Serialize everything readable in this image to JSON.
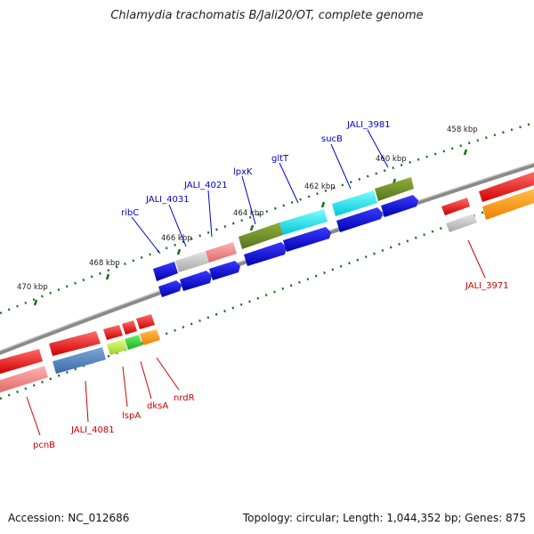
{
  "title": "Chlamydia trachomatis B/Jali20/OT, complete genome",
  "footer": {
    "accession": "Accession: NC_012686",
    "summary": "Topology: circular; Length: 1,044,352 bp; Genes: 875"
  },
  "scale": {
    "ticks": [
      {
        "label": "458 kbp",
        "kb": 458
      },
      {
        "label": "460 kbp",
        "kb": 460
      },
      {
        "label": "462 kbp",
        "kb": 462
      },
      {
        "label": "464 kbp",
        "kb": 464
      },
      {
        "label": "466 kbp",
        "kb": 466
      },
      {
        "label": "468 kbp",
        "kb": 468
      },
      {
        "label": "470 kbp",
        "kb": 470
      }
    ]
  },
  "genes": {
    "top_labels": [
      "ribC",
      "JALI_4031",
      "JALI_4021",
      "lpxK",
      "gltT",
      "sucB",
      "JALI_3981"
    ],
    "bottom_labels": [
      "pcnB",
      "JALI_4081",
      "lspA",
      "dksA",
      "nrdR",
      "JALI_3971"
    ]
  },
  "colors": {
    "top_label": "#0000cc",
    "bottom_label": "#cc0000",
    "tick": "#1b6e1b",
    "backbone": "#888888"
  }
}
